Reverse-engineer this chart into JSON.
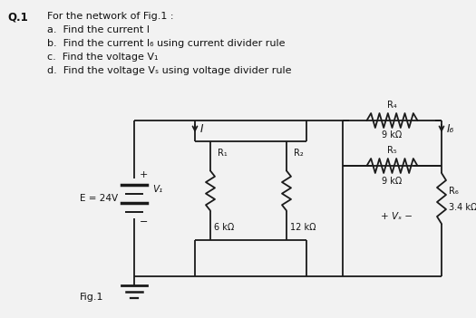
{
  "title_q": "Q.1",
  "q_line0": "For the network of Fig.1 :",
  "q_line1": "a.  Find the current I",
  "q_line2": "b.  Find the current I₆ using current divider rule",
  "q_line3": "c.  Find the voltage V₁",
  "q_line4": "d.  Find the voltage Vₛ using voltage divider rule",
  "fig_label": "Fig.1",
  "E_label": "E = 24V",
  "R1_label": "R₁",
  "R1_val": "6 kΩ",
  "R2_label": "R₂",
  "R2_val": "12 kΩ",
  "R4_label": "R₄",
  "R4_val": "9 kΩ",
  "R5_label": "R₅",
  "R5_val": "9 kΩ",
  "R6_label": "R₆",
  "R6_val": "3.4 kΩ",
  "V1_label": "V₁",
  "Vs_label": "+ Vₛ −",
  "I_label": "I",
  "I6_label": "I₆",
  "plus_label": "+",
  "minus_label": "−",
  "bg_color": "#f2f2f2",
  "lc": "#1a1a1a",
  "tc": "#111111"
}
